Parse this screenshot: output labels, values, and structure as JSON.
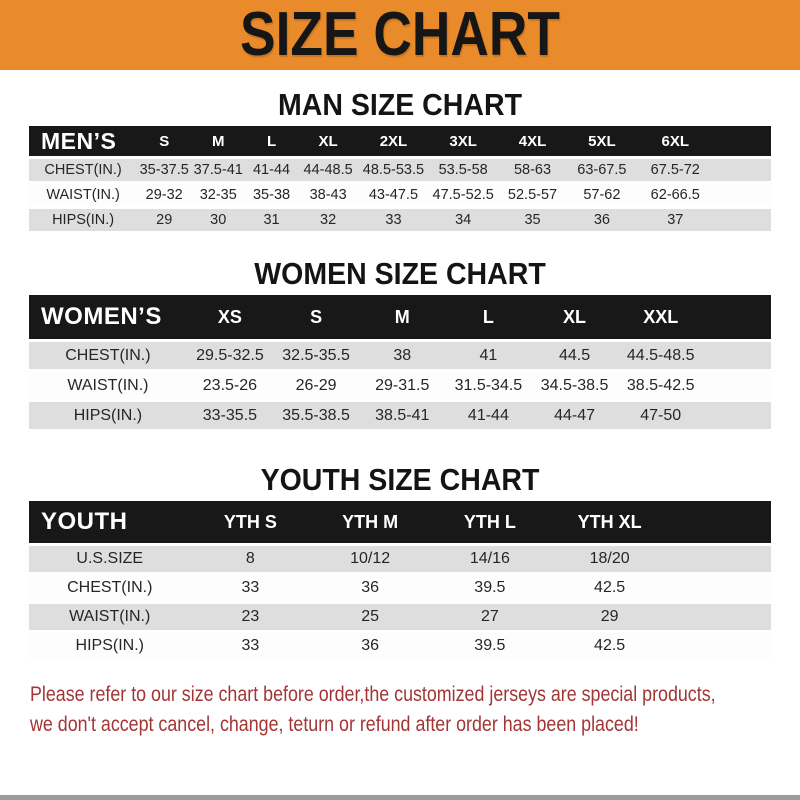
{
  "banner": {
    "title": "SIZE CHART",
    "bg_color": "#E98A2B"
  },
  "colors": {
    "table_header_bg": "#181818",
    "row_alt_gray": "#DEDEDE",
    "note_red": "#A33535"
  },
  "tables": [
    {
      "heading": "MAN SIZE CHART",
      "header": [
        "MEN’S",
        "S",
        "M",
        "L",
        "XL",
        "2XL",
        "3XL",
        "4XL",
        "5XL",
        "6XL"
      ],
      "rows": [
        [
          "CHEST(IN.)",
          "35-37.5",
          "37.5-41",
          "41-44",
          "44-48.5",
          "48.5-53.5",
          "53.5-58",
          "58-63",
          "63-67.5",
          "67.5-72"
        ],
        [
          "WAIST(IN.)",
          "29-32",
          "32-35",
          "35-38",
          "38-43",
          "43-47.5",
          "47.5-52.5",
          "52.5-57",
          "57-62",
          "62-66.5"
        ],
        [
          "HIPS(IN.)",
          "29",
          "30",
          "31",
          "32",
          "33",
          "34",
          "35",
          "36",
          "37"
        ]
      ]
    },
    {
      "heading": "WOMEN SIZE CHART",
      "header": [
        "WOMEN’S",
        "XS",
        "S",
        "M",
        "L",
        "XL",
        "XXL"
      ],
      "rows": [
        [
          "CHEST(IN.)",
          "29.5-32.5",
          "32.5-35.5",
          "38",
          "41",
          "44.5",
          "44.5-48.5"
        ],
        [
          "WAIST(IN.)",
          "23.5-26",
          "26-29",
          "29-31.5",
          "31.5-34.5",
          "34.5-38.5",
          "38.5-42.5"
        ],
        [
          "HIPS(IN.)",
          "33-35.5",
          "35.5-38.5",
          "38.5-41",
          "41-44",
          "44-47",
          "47-50"
        ]
      ]
    },
    {
      "heading": "YOUTH SIZE CHART",
      "header": [
        "YOUTH",
        "YTH S",
        "YTH M",
        "YTH L",
        "YTH XL"
      ],
      "rows": [
        [
          "U.S.SIZE",
          "8",
          "10/12",
          "14/16",
          "18/20"
        ],
        [
          "CHEST(IN.)",
          "33",
          "36",
          "39.5",
          "42.5"
        ],
        [
          "WAIST(IN.)",
          "23",
          "25",
          "27",
          "29"
        ],
        [
          "HIPS(IN.)",
          "33",
          "36",
          "39.5",
          "42.5"
        ]
      ]
    }
  ],
  "note": {
    "lines": [
      "Please refer to our size chart before order,the customized jerseys are special products,",
      "we don't accept cancel, change, teturn or refund after order has been placed!"
    ]
  }
}
